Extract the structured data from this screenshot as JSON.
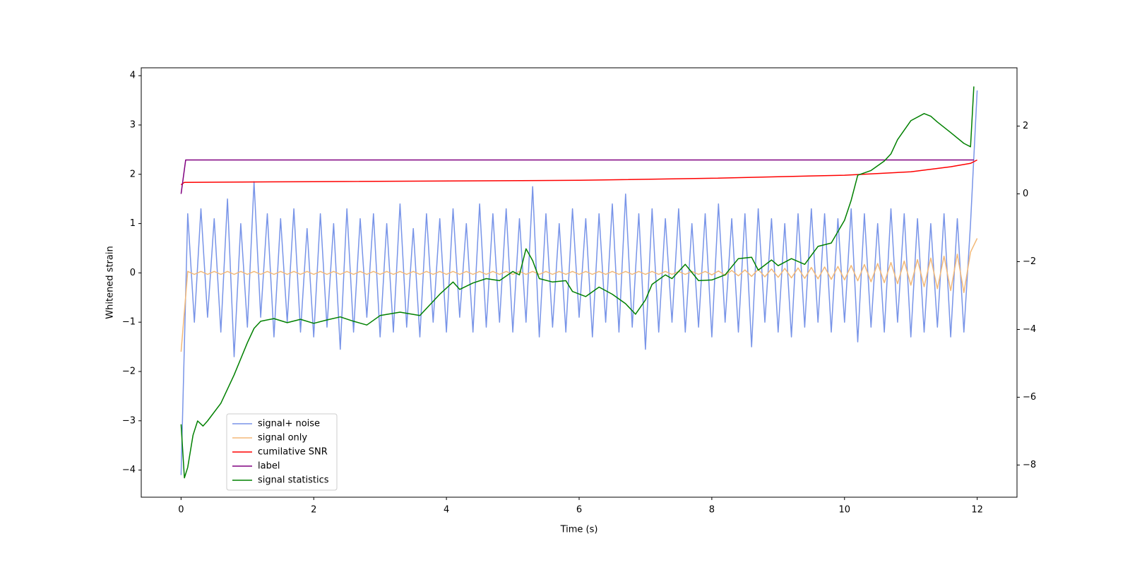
{
  "chart_data": {
    "type": "line",
    "xlabel": "Time (s)",
    "ylabel": "Whitened strain",
    "xlim": [
      -0.6,
      12.6
    ],
    "xticks": [
      0,
      2,
      4,
      6,
      8,
      10,
      12
    ],
    "ylim": [
      -4.55,
      4.16
    ],
    "yticks": [
      {
        "value": -4,
        "label": "−4"
      },
      {
        "value": -3,
        "label": "−3"
      },
      {
        "value": -2,
        "label": "−2"
      },
      {
        "value": -1,
        "label": "−1"
      },
      0,
      1,
      2,
      3,
      4
    ],
    "y2lim": [
      -8.95,
      3.72
    ],
    "y2ticks": [
      {
        "value": -8,
        "label": "−8"
      },
      {
        "value": -6,
        "label": "−6"
      },
      {
        "value": -4,
        "label": "−4"
      },
      {
        "value": -2,
        "label": "−2"
      },
      0,
      2
    ],
    "legend": "lower left",
    "x": [
      0,
      0.1,
      0.2,
      0.3,
      0.4,
      0.5,
      0.6,
      0.7,
      0.8,
      0.9,
      1,
      1.1,
      1.2,
      1.3,
      1.4,
      1.5,
      1.6,
      1.7,
      1.8,
      1.9,
      2,
      2.1,
      2.2,
      2.3,
      2.4,
      2.5,
      2.6,
      2.7,
      2.8,
      2.9,
      3,
      3.1,
      3.2,
      3.3,
      3.4,
      3.5,
      3.6,
      3.7,
      3.8,
      3.9,
      4,
      4.1,
      4.2,
      4.3,
      4.4,
      4.5,
      4.6,
      4.7,
      4.8,
      4.9,
      5,
      5.1,
      5.2,
      5.3,
      5.4,
      5.5,
      5.6,
      5.7,
      5.8,
      5.9,
      6,
      6.1,
      6.2,
      6.3,
      6.4,
      6.5,
      6.6,
      6.7,
      6.8,
      6.9,
      7,
      7.1,
      7.2,
      7.3,
      7.4,
      7.5,
      7.6,
      7.7,
      7.8,
      7.9,
      8,
      8.1,
      8.2,
      8.3,
      8.4,
      8.5,
      8.6,
      8.7,
      8.8,
      8.9,
      9,
      9.1,
      9.2,
      9.3,
      9.4,
      9.5,
      9.6,
      9.7,
      9.8,
      9.9,
      10,
      10.1,
      10.2,
      10.3,
      10.4,
      10.5,
      10.6,
      10.7,
      10.8,
      10.9,
      11,
      11.1,
      11.2,
      11.3,
      11.4,
      11.5,
      11.6,
      11.7,
      11.8,
      11.9,
      12
    ],
    "series": [
      {
        "name": "signal+ noise",
        "color": "#7894e8",
        "values": [
          -4.1,
          1.2,
          -1.0,
          1.3,
          -0.9,
          1.1,
          -1.2,
          1.5,
          -1.7,
          1.0,
          -1.1,
          1.85,
          -0.9,
          1.2,
          -1.3,
          1.1,
          -1.0,
          1.3,
          -1.2,
          0.9,
          -1.3,
          1.2,
          -1.1,
          1.0,
          -1.55,
          1.3,
          -1.2,
          1.1,
          -0.9,
          1.2,
          -1.3,
          1.0,
          -1.2,
          1.4,
          -1.1,
          0.9,
          -1.3,
          1.2,
          -1.0,
          1.1,
          -1.2,
          1.3,
          -0.9,
          1.0,
          -1.2,
          1.4,
          -1.1,
          1.2,
          -1.0,
          1.3,
          -1.2,
          1.1,
          -1.0,
          1.75,
          -1.3,
          1.2,
          -1.1,
          1.0,
          -1.2,
          1.3,
          -0.9,
          1.1,
          -1.3,
          1.2,
          -1.0,
          1.4,
          -1.2,
          1.6,
          -1.1,
          1.2,
          -1.55,
          1.3,
          -1.2,
          1.1,
          -1.0,
          1.3,
          -1.2,
          1.0,
          -1.1,
          1.2,
          -1.3,
          1.4,
          -1.0,
          1.1,
          -1.2,
          1.2,
          -1.5,
          1.3,
          -1.0,
          1.1,
          -1.2,
          1.0,
          -1.3,
          1.2,
          -1.1,
          1.3,
          -1.0,
          1.2,
          -1.2,
          1.1,
          -1.0,
          1.3,
          -1.4,
          1.2,
          -1.1,
          1.0,
          -1.2,
          1.3,
          -1.0,
          1.2,
          -1.3,
          1.1,
          -1.2,
          1.0,
          -1.1,
          1.2,
          -1.3,
          1.1,
          -1.2,
          1.0,
          3.7
        ]
      },
      {
        "name": "signal only",
        "color": "#f3b978",
        "values": [
          -1.6,
          0.03,
          -0.03,
          0.03,
          -0.03,
          0.03,
          -0.03,
          0.03,
          -0.03,
          0.03,
          -0.03,
          0.03,
          -0.03,
          0.03,
          -0.03,
          0.03,
          -0.03,
          0.03,
          -0.03,
          0.03,
          -0.03,
          0.03,
          -0.03,
          0.03,
          -0.03,
          0.03,
          -0.03,
          0.03,
          -0.03,
          0.03,
          -0.03,
          0.03,
          -0.03,
          0.03,
          -0.03,
          0.03,
          -0.03,
          0.03,
          -0.03,
          0.03,
          -0.03,
          0.03,
          -0.03,
          0.03,
          -0.03,
          0.03,
          -0.03,
          0.03,
          -0.03,
          0.03,
          -0.03,
          0.03,
          -0.03,
          0.03,
          -0.03,
          0.03,
          -0.03,
          0.03,
          -0.03,
          0.03,
          -0.03,
          0.03,
          -0.03,
          0.03,
          -0.03,
          0.03,
          -0.03,
          0.03,
          -0.03,
          0.03,
          -0.03,
          0.03,
          -0.03,
          0.03,
          -0.03,
          0.03,
          -0.03,
          0.03,
          -0.03,
          0.03,
          -0.04,
          0.04,
          -0.05,
          0.05,
          -0.06,
          0.06,
          -0.07,
          0.07,
          -0.08,
          0.08,
          -0.09,
          0.09,
          -0.1,
          0.1,
          -0.11,
          0.11,
          -0.12,
          0.12,
          -0.13,
          0.13,
          -0.14,
          0.15,
          -0.16,
          0.17,
          -0.18,
          0.19,
          -0.2,
          0.21,
          -0.22,
          0.24,
          -0.25,
          0.27,
          -0.28,
          0.3,
          -0.32,
          0.34,
          -0.36,
          0.38,
          -0.4,
          0.42,
          0.7
        ]
      },
      {
        "name": "cumilative SNR",
        "color": "#ff0000",
        "axis": "y2",
        "x": [
          0,
          0.05,
          2,
          6,
          8,
          10,
          11,
          11.6,
          11.9,
          12
        ],
        "values": [
          0.27,
          0.34,
          0.36,
          0.4,
          0.46,
          0.55,
          0.65,
          0.8,
          0.9,
          1.0
        ]
      },
      {
        "name": "label",
        "color": "#800080",
        "axis": "y2",
        "x": [
          0,
          0.07,
          11.95
        ],
        "values": [
          0,
          1,
          1
        ]
      },
      {
        "name": "signal statistics",
        "color": "#008000",
        "axis": "y2",
        "x": [
          0,
          0.05,
          0.1,
          0.18,
          0.25,
          0.33,
          0.4,
          0.6,
          0.8,
          1.0,
          1.1,
          1.2,
          1.4,
          1.6,
          1.8,
          2.0,
          2.2,
          2.4,
          2.6,
          2.8,
          3.0,
          3.3,
          3.6,
          3.9,
          4.1,
          4.2,
          4.4,
          4.6,
          4.8,
          5.0,
          5.1,
          5.2,
          5.3,
          5.4,
          5.6,
          5.8,
          5.9,
          6.1,
          6.3,
          6.5,
          6.7,
          6.85,
          7.0,
          7.1,
          7.3,
          7.4,
          7.6,
          7.8,
          8.0,
          8.2,
          8.4,
          8.6,
          8.7,
          8.9,
          9.0,
          9.2,
          9.4,
          9.6,
          9.8,
          10.0,
          10.1,
          10.2,
          10.4,
          10.6,
          10.7,
          10.8,
          11.0,
          11.2,
          11.3,
          11.4,
          11.6,
          11.8,
          11.9,
          11.95
        ],
        "values": [
          -6.8,
          -8.38,
          -8.07,
          -7.12,
          -6.7,
          -6.85,
          -6.7,
          -6.18,
          -5.34,
          -4.39,
          -3.97,
          -3.76,
          -3.68,
          -3.8,
          -3.7,
          -3.82,
          -3.72,
          -3.63,
          -3.76,
          -3.87,
          -3.59,
          -3.49,
          -3.59,
          -2.96,
          -2.6,
          -2.82,
          -2.63,
          -2.5,
          -2.56,
          -2.29,
          -2.39,
          -1.62,
          -1.97,
          -2.5,
          -2.6,
          -2.56,
          -2.88,
          -3.03,
          -2.75,
          -2.96,
          -3.24,
          -3.55,
          -3.13,
          -2.67,
          -2.39,
          -2.5,
          -2.08,
          -2.56,
          -2.54,
          -2.39,
          -1.91,
          -1.87,
          -2.25,
          -1.95,
          -2.12,
          -1.91,
          -2.08,
          -1.55,
          -1.45,
          -0.78,
          -0.19,
          0.55,
          0.69,
          0.97,
          1.18,
          1.6,
          2.16,
          2.37,
          2.29,
          2.12,
          1.81,
          1.49,
          1.39,
          3.17
        ]
      }
    ]
  }
}
